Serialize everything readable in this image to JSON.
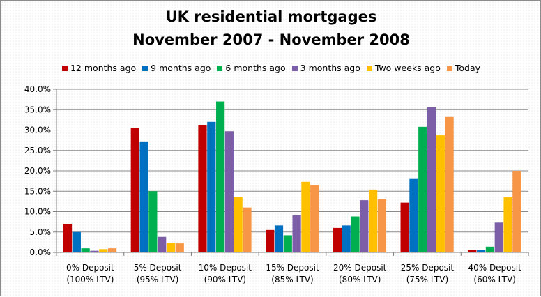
{
  "chart_data": {
    "type": "bar",
    "title_lines": [
      "UK residential mortgages",
      "November 2007 - November 2008"
    ],
    "xlabel": "",
    "ylabel": "",
    "ylim": [
      0,
      40
    ],
    "y_ticks": [
      "0.0%",
      "5.0%",
      "10.0%",
      "15.0%",
      "20.0%",
      "25.0%",
      "30.0%",
      "35.0%",
      "40.0%"
    ],
    "grid": true,
    "legend_position": "top",
    "categories": [
      [
        "0% Deposit",
        "(100% LTV)"
      ],
      [
        "5% Deposit",
        "(95% LTV)"
      ],
      [
        "10% Deposit",
        "(90% LTV)"
      ],
      [
        "15% Deposit",
        "(85% LTV)"
      ],
      [
        "20% Deposit",
        "(80% LTV)"
      ],
      [
        "25% Deposit",
        "(75% LTV)"
      ],
      [
        "40% Deposit",
        "(60% LTV)"
      ]
    ],
    "series": [
      {
        "name": "12 months ago",
        "color": "#c00000",
        "values": [
          7.0,
          30.5,
          31.2,
          5.5,
          6.0,
          12.2,
          0.6
        ]
      },
      {
        "name": "9 months ago",
        "color": "#0070c0",
        "values": [
          5.0,
          27.2,
          32.0,
          6.6,
          6.6,
          18.0,
          0.6
        ]
      },
      {
        "name": "6 months ago",
        "color": "#00b050",
        "values": [
          1.0,
          15.0,
          37.0,
          4.2,
          8.8,
          30.8,
          1.4
        ]
      },
      {
        "name": "3 months ago",
        "color": "#7b5ea7",
        "values": [
          0.4,
          3.8,
          29.7,
          9.1,
          12.8,
          35.6,
          7.3
        ]
      },
      {
        "name": "Two weeks ago",
        "color": "#ffc000",
        "values": [
          0.8,
          2.3,
          13.6,
          17.3,
          15.4,
          28.7,
          13.5
        ]
      },
      {
        "name": "Today",
        "color": "#f79646",
        "values": [
          1.0,
          2.2,
          11.0,
          16.5,
          13.0,
          33.2,
          20.0
        ]
      }
    ]
  }
}
